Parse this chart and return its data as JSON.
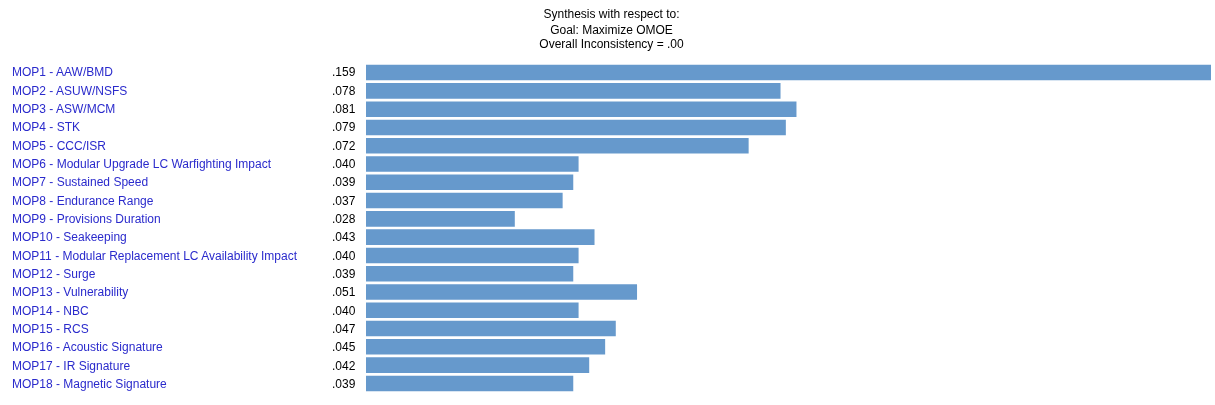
{
  "chart_data": {
    "type": "bar",
    "orientation": "horizontal",
    "title": "Synthesis with respect to:",
    "subtitle": "Goal: Maximize OMOE\nOverall Inconsistency = .00",
    "categories": [
      "MOP1 - AAW/BMD",
      "MOP2 - ASUW/NSFS",
      "MOP3 - ASW/MCM",
      "MOP4 - STK",
      "MOP5 - CCC/ISR",
      "MOP6 - Modular Upgrade LC Warfighting Impact",
      "MOP7 - Sustained Speed",
      "MOP8 - Endurance Range",
      "MOP9 - Provisions Duration",
      "MOP10 - Seakeeping",
      "MOP11 - Modular Replacement LC Availability Impact",
      "MOP12 - Surge",
      "MOP13 - Vulnerability",
      "MOP14 - NBC",
      "MOP15 - RCS",
      "MOP16 - Acoustic Signature",
      "MOP17 - IR Signature",
      "MOP18 - Magnetic Signature"
    ],
    "values": [
      0.159,
      0.078,
      0.081,
      0.079,
      0.072,
      0.04,
      0.039,
      0.037,
      0.028,
      0.043,
      0.04,
      0.039,
      0.051,
      0.04,
      0.047,
      0.045,
      0.042,
      0.039
    ],
    "value_labels": [
      ".159",
      ".078",
      ".081",
      ".079",
      ".072",
      ".040",
      ".039",
      ".037",
      ".028",
      ".043",
      ".040",
      ".039",
      ".051",
      ".040",
      ".047",
      ".045",
      ".042",
      ".039"
    ],
    "color": "#6699cc"
  }
}
